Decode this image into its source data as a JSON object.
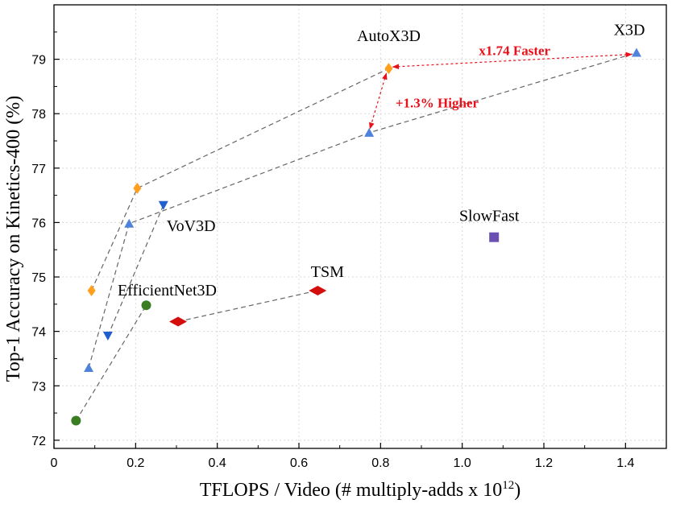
{
  "chart_data": {
    "type": "scatter",
    "xlabel": "TFLOPS / Video (# multiply-adds x 10",
    "xlabel_sup": "12",
    "xlabel_end": ")",
    "ylabel": "Top-1 Accuracy on Kinetics-400 (%)",
    "xlim": [
      0,
      1.5
    ],
    "ylim": [
      71.85,
      80.0
    ],
    "xticks": [
      "0",
      "0.2",
      "0.4",
      "0.6",
      "0.8",
      "1.0",
      "1.2",
      "1.4"
    ],
    "xtick_values": [
      0,
      0.2,
      0.4,
      0.6,
      0.8,
      1.0,
      1.2,
      1.4
    ],
    "yticks": [
      "72",
      "73",
      "74",
      "75",
      "76",
      "77",
      "78",
      "79"
    ],
    "ytick_values": [
      72,
      73,
      74,
      75,
      76,
      77,
      78,
      79
    ],
    "grid": true,
    "series": [
      {
        "name": "AutoX3D",
        "marker": "diamond",
        "color": "#ff9f1c",
        "points": [
          [
            0.092,
            74.75
          ],
          [
            0.204,
            76.63
          ],
          [
            0.82,
            78.83
          ]
        ]
      },
      {
        "name": "X3D",
        "marker": "triangle-up",
        "color": "#4f83db",
        "points": [
          [
            0.085,
            73.33
          ],
          [
            0.184,
            75.98
          ],
          [
            0.772,
            77.65
          ],
          [
            1.427,
            79.12
          ]
        ]
      },
      {
        "name": "VoV3D",
        "marker": "triangle-down",
        "color": "#1f5fce",
        "points": [
          [
            0.132,
            73.92
          ],
          [
            0.268,
            76.32
          ]
        ]
      },
      {
        "name": "EfficientNet3D",
        "marker": "circle",
        "color": "#3a7d23",
        "points": [
          [
            0.054,
            72.36
          ],
          [
            0.226,
            74.48
          ]
        ]
      },
      {
        "name": "TSM",
        "marker": "wide-diamond",
        "color": "#d40d0d",
        "points": [
          [
            0.304,
            74.18
          ],
          [
            0.646,
            74.75
          ]
        ]
      },
      {
        "name": "SlowFast",
        "marker": "square",
        "color": "#6b4fb3",
        "points": [
          [
            1.078,
            75.73
          ]
        ]
      }
    ],
    "annotations": [
      {
        "text": "x1.74 Faster",
        "color": "#e8101a"
      },
      {
        "text": "+1.3% Higher",
        "color": "#e8101a"
      }
    ]
  }
}
